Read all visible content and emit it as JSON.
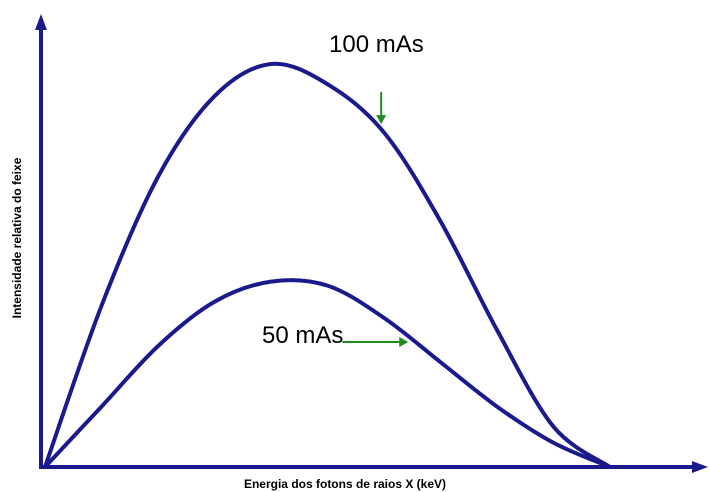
{
  "chart_data": {
    "type": "line",
    "title": "",
    "xlabel": "Energia dos fotons de raios X (keV)",
    "ylabel": "Intensidade relativa do feixe",
    "xlim": [
      0,
      100
    ],
    "ylim": [
      0,
      100
    ],
    "grid": false,
    "legend": "none",
    "series": [
      {
        "name": "100 mAs",
        "color": "#1a1a8c",
        "x": [
          0,
          10,
          20,
          30,
          40,
          50,
          60,
          70,
          80,
          90,
          100
        ],
        "y": [
          0,
          40,
          72,
          92,
          100,
          95,
          83,
          61,
          34,
          10,
          0
        ]
      },
      {
        "name": "50 mAs",
        "color": "#1a1a8c",
        "x": [
          0,
          10,
          20,
          30,
          40,
          50,
          60,
          70,
          80,
          90,
          100
        ],
        "y": [
          0,
          15,
          30,
          41,
          46,
          45,
          37,
          26,
          15,
          6,
          0
        ]
      }
    ],
    "annotations": [
      {
        "text": "100 mAs",
        "series": 0,
        "point_x": 59.5,
        "arrow_color": "#1e8c1e",
        "direction": "down"
      },
      {
        "text": "50 mAs",
        "series": 1,
        "point_x": 65,
        "arrow_color": "#1e8c1e",
        "direction": "right"
      }
    ]
  }
}
